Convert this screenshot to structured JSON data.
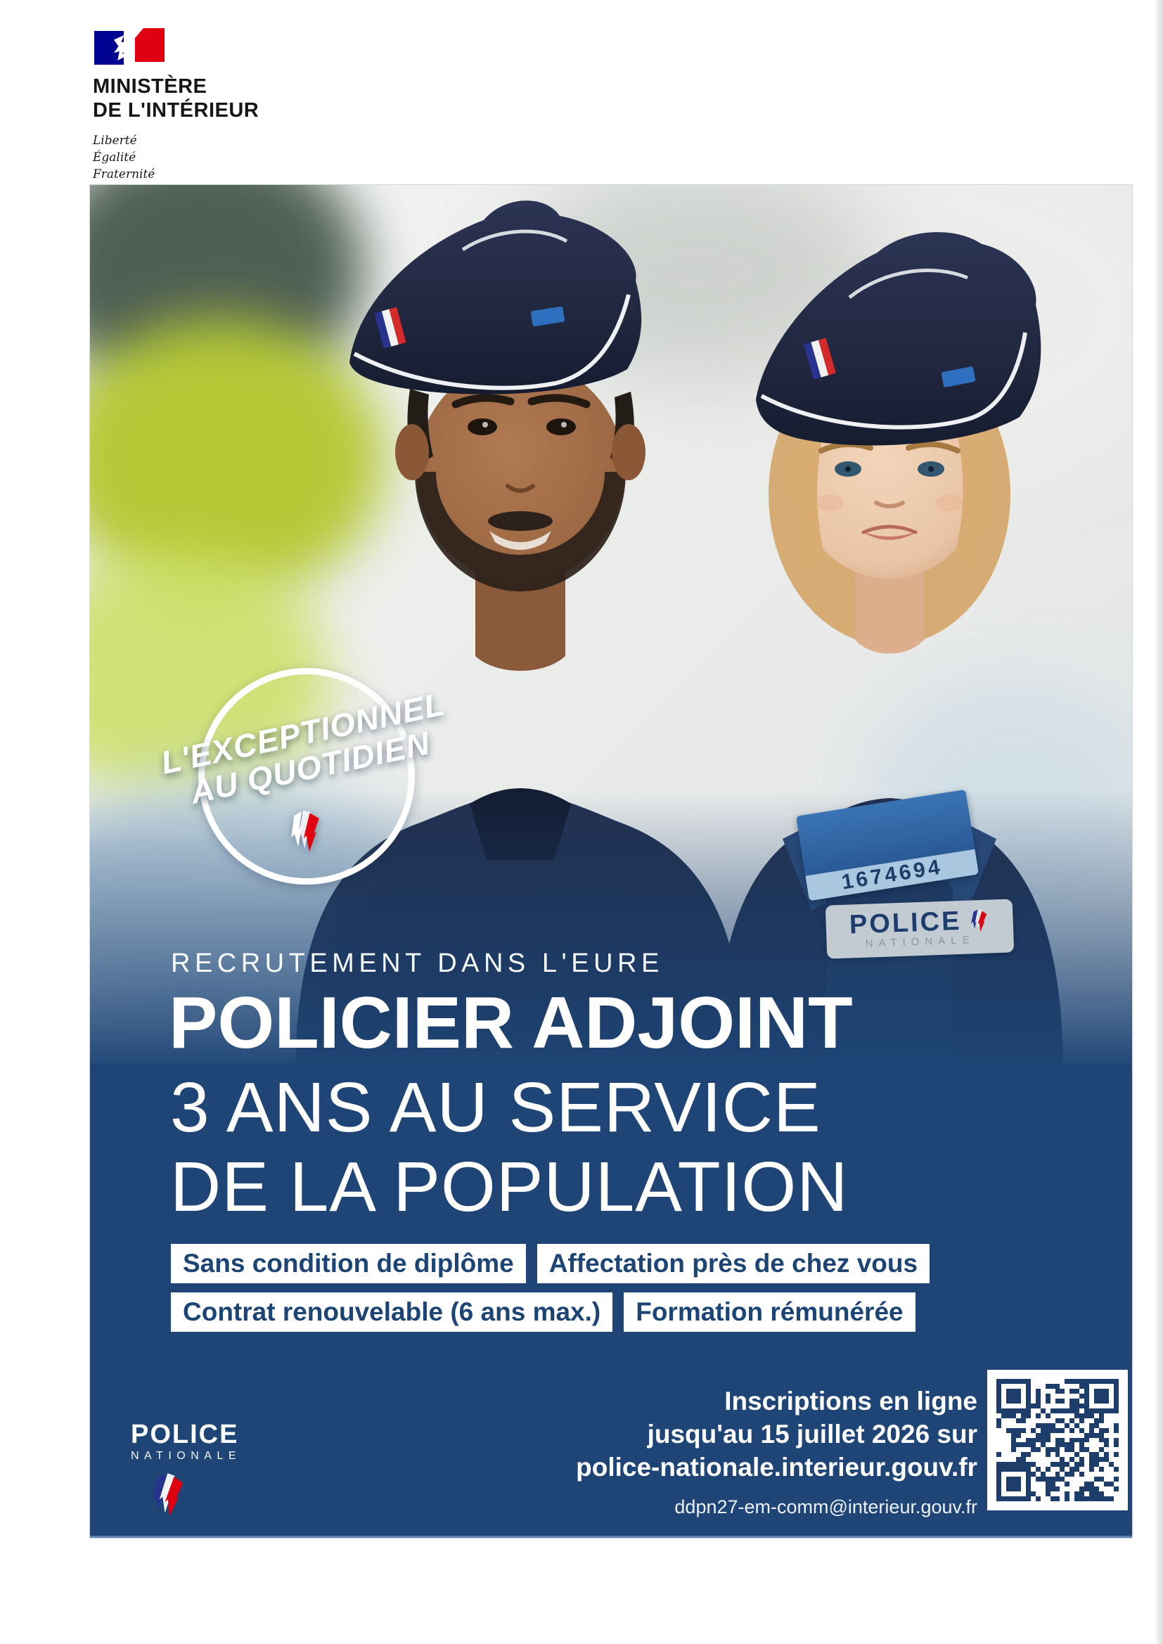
{
  "page": {
    "ministry": {
      "name_line1": "MINISTÈRE",
      "name_line2": "DE L'INTÉRIEUR",
      "motto_line1": "Liberté",
      "motto_line2": "Égalité",
      "motto_line3": "Fraternité"
    },
    "poster": {
      "badge": {
        "line1": "L'EXCEPTIONNEL",
        "line2": "AU QUOTIDIEN"
      },
      "uniform_patch": {
        "police": "POLICE",
        "nationale": "NATIONALE"
      },
      "vest_number": "1674694",
      "kicker": "RECRUTEMENT DANS L'EURE",
      "title": "POLICIER ADJOINT",
      "subtitle_line1": "3 ANS AU SERVICE",
      "subtitle_line2": "DE LA POPULATION",
      "benefits": [
        "Sans condition de diplôme",
        "Affectation près de chez vous",
        "Contrat renouvelable (6 ans max.)",
        "Formation rémunérée"
      ],
      "footer": {
        "logo_police": "POLICE",
        "logo_nationale": "NATIONALE",
        "cta_line1": "Inscriptions en ligne",
        "cta_line2": "jusqu'au 15 juillet 2026 sur",
        "cta_line3": "police-nationale.interieur.gouv.fr",
        "email": "ddpn27-em-comm@interieur.gouv.fr"
      }
    },
    "colors": {
      "poster_blue": "#1e4576",
      "marianne_blue": "#000091",
      "marianne_red": "#e1000f",
      "pill_text": "#1c4576",
      "qr_module": "#1d3e6b"
    }
  }
}
